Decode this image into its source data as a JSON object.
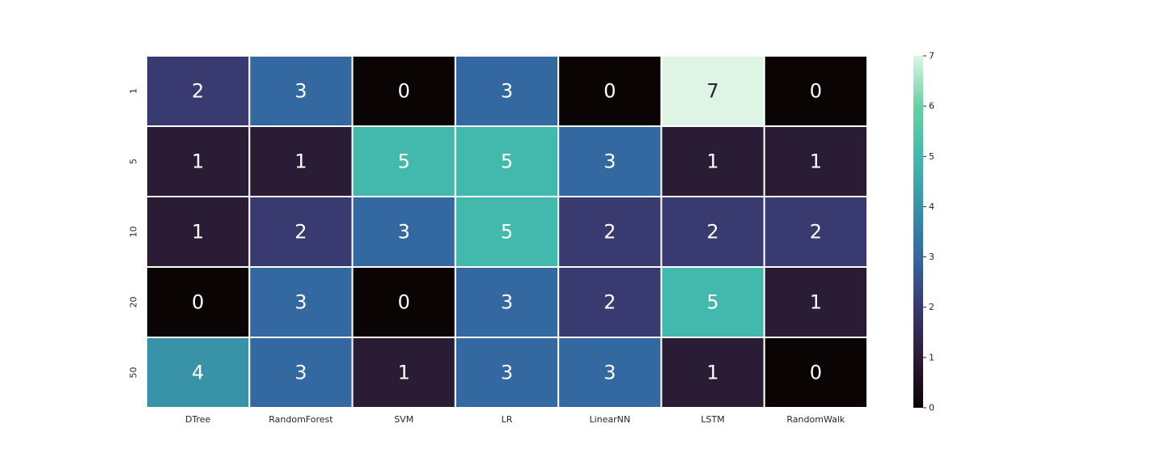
{
  "chart_data": {
    "type": "heatmap",
    "title": "",
    "xlabel": "",
    "ylabel": "",
    "x_categories": [
      "DTree",
      "RandomForest",
      "SVM",
      "LR",
      "LinearNN",
      "LSTM",
      "RandomWalk"
    ],
    "y_categories": [
      "1",
      "5",
      "10",
      "20",
      "50"
    ],
    "values": [
      [
        2,
        3,
        0,
        3,
        0,
        7,
        0
      ],
      [
        1,
        1,
        5,
        5,
        3,
        1,
        1
      ],
      [
        1,
        2,
        3,
        5,
        2,
        2,
        2
      ],
      [
        0,
        3,
        0,
        3,
        2,
        5,
        1
      ],
      [
        4,
        3,
        1,
        3,
        3,
        1,
        0
      ]
    ],
    "colorbar": {
      "min": 0,
      "max": 7,
      "ticks": [
        "0",
        "1",
        "2",
        "3",
        "4",
        "5",
        "6",
        "7"
      ]
    },
    "colormap": {
      "0": "#0b0405",
      "1": "#2b1c35",
      "2": "#383a70",
      "3": "#3368a1",
      "4": "#3893a8",
      "5": "#43b9ad",
      "6": "#64d1a4",
      "7": "#def5e5"
    },
    "grid": false,
    "cell_border_color": "#ffffff"
  }
}
